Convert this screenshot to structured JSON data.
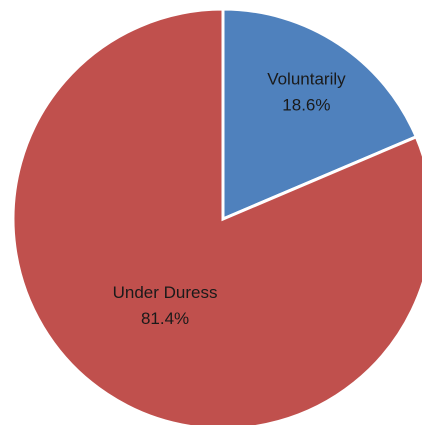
{
  "chart_data": {
    "type": "pie",
    "categories": [
      "Voluntarily",
      "Under Duress"
    ],
    "values": [
      18.6,
      81.4
    ],
    "value_labels": [
      "18.6%",
      "81.4%"
    ],
    "colors": [
      "#4f81bd",
      "#c0504d"
    ]
  }
}
